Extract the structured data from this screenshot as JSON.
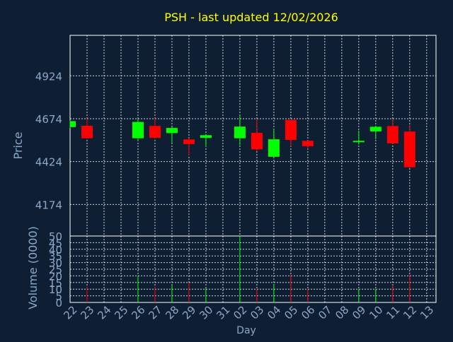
{
  "title": "PSH - last updated 12/02/2026",
  "colors": {
    "background": "#0f1f33",
    "title": "#ffff00",
    "axis_text": "#8aa8c8",
    "grid": "#ffffff",
    "frame": "#ffffff",
    "up": "#00ff00",
    "down": "#ff0000"
  },
  "chart_data": [
    {
      "type": "candlestick",
      "ylabel": "Price",
      "ylim": [
        3990,
        5160
      ],
      "yticks": [
        4174,
        4424,
        4674,
        4924
      ],
      "grid": true,
      "categories": [
        "22",
        "23",
        "24",
        "25",
        "26",
        "27",
        "28",
        "29",
        "30",
        "31",
        "02",
        "03",
        "04",
        "05",
        "06",
        "07",
        "08",
        "09",
        "10",
        "11",
        "12",
        "13"
      ],
      "candles": [
        {
          "x": "22",
          "open": 4625,
          "close": 4660,
          "high": 4665,
          "low": 4620
        },
        {
          "x": "23",
          "open": 4633,
          "close": 4560,
          "high": 4676,
          "low": 4555
        },
        {
          "x": "26",
          "open": 4560,
          "close": 4655,
          "high": 4676,
          "low": 4544
        },
        {
          "x": "27",
          "open": 4632,
          "close": 4562,
          "high": 4677,
          "low": 4558
        },
        {
          "x": "28",
          "open": 4590,
          "close": 4620,
          "high": 4625,
          "low": 4534
        },
        {
          "x": "29",
          "open": 4553,
          "close": 4526,
          "high": 4560,
          "low": 4460
        },
        {
          "x": "30",
          "open": 4562,
          "close": 4578,
          "high": 4580,
          "low": 4508
        },
        {
          "x": "02",
          "open": 4560,
          "close": 4628,
          "high": 4693,
          "low": 4520
        },
        {
          "x": "03",
          "open": 4592,
          "close": 4495,
          "high": 4672,
          "low": 4485
        },
        {
          "x": "04",
          "open": 4452,
          "close": 4554,
          "high": 4616,
          "low": 4448
        },
        {
          "x": "05",
          "open": 4667,
          "close": 4550,
          "high": 4670,
          "low": 4512
        },
        {
          "x": "06",
          "open": 4545,
          "close": 4514,
          "high": 4548,
          "low": 4498
        },
        {
          "x": "09",
          "open": 4538,
          "close": 4545,
          "high": 4604,
          "low": 4523
        },
        {
          "x": "10",
          "open": 4600,
          "close": 4627,
          "high": 4630,
          "low": 4555
        },
        {
          "x": "11",
          "open": 4631,
          "close": 4530,
          "high": 4671,
          "low": 4525
        },
        {
          "x": "12",
          "open": 4599,
          "close": 4391,
          "high": 4637,
          "low": 4386
        }
      ]
    },
    {
      "type": "bar",
      "ylabel": "Volume (0000)",
      "xlabel": "Day",
      "ylim": [
        0,
        50
      ],
      "yticks": [
        0,
        5,
        10,
        15,
        20,
        25,
        30,
        35,
        40,
        45,
        50
      ],
      "grid": true,
      "categories": [
        "22",
        "23",
        "24",
        "25",
        "26",
        "27",
        "28",
        "29",
        "30",
        "31",
        "02",
        "03",
        "04",
        "05",
        "06",
        "07",
        "08",
        "09",
        "10",
        "11",
        "12",
        "13"
      ],
      "bars": [
        {
          "x": "23",
          "value": 12,
          "direction": "down"
        },
        {
          "x": "26",
          "value": 20,
          "direction": "up"
        },
        {
          "x": "27",
          "value": 12,
          "direction": "down"
        },
        {
          "x": "28",
          "value": 13,
          "direction": "up"
        },
        {
          "x": "29",
          "value": 15,
          "direction": "down"
        },
        {
          "x": "30",
          "value": 11,
          "direction": "up"
        },
        {
          "x": "02",
          "value": 50,
          "direction": "up"
        },
        {
          "x": "03",
          "value": 10,
          "direction": "down"
        },
        {
          "x": "04",
          "value": 14,
          "direction": "up"
        },
        {
          "x": "05",
          "value": 21,
          "direction": "down"
        },
        {
          "x": "06",
          "value": 10,
          "direction": "down"
        },
        {
          "x": "09",
          "value": 10,
          "direction": "up"
        },
        {
          "x": "10",
          "value": 10,
          "direction": "up"
        },
        {
          "x": "11",
          "value": 13,
          "direction": "down"
        },
        {
          "x": "12",
          "value": 21,
          "direction": "down"
        }
      ]
    }
  ]
}
